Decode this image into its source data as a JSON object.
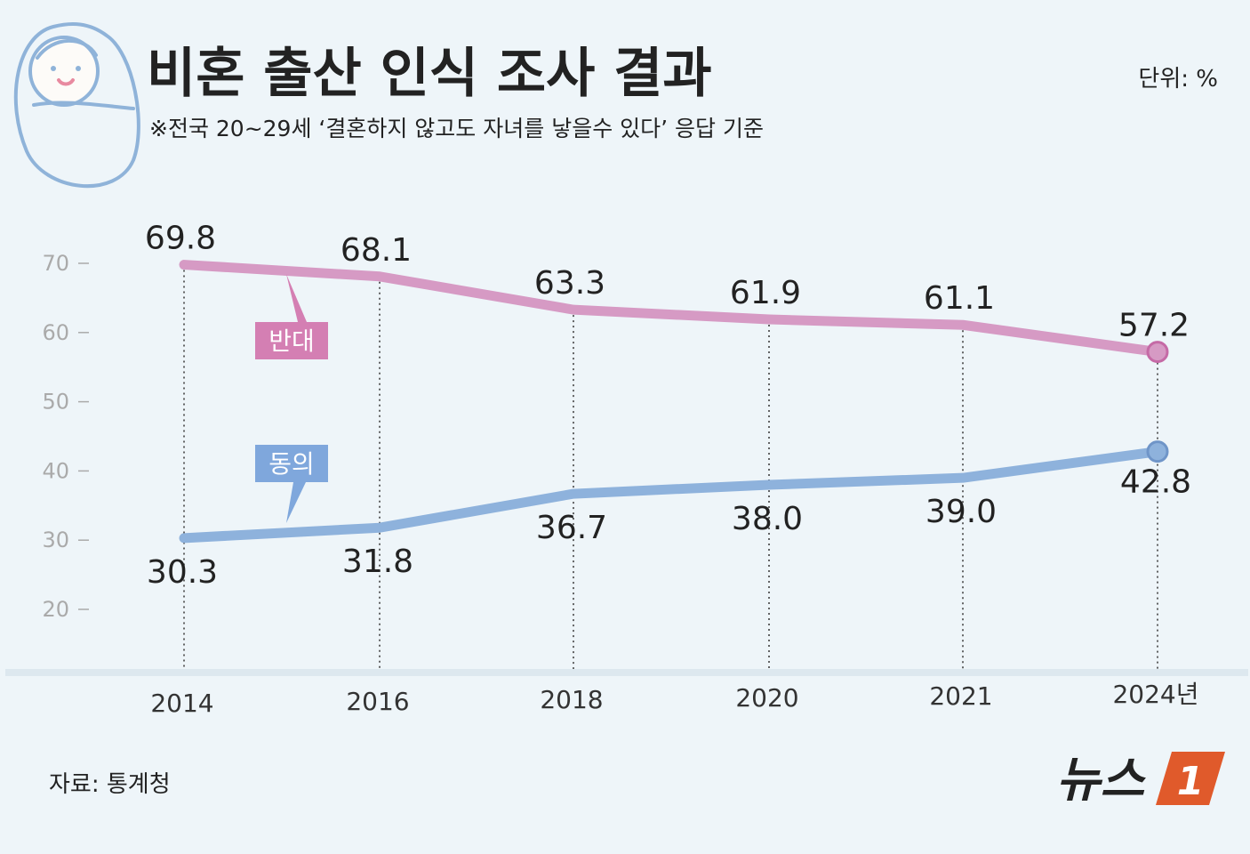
{
  "header": {
    "title": "비혼 출산 인식 조사 결과",
    "subtitle": "※전국 20~29세 ‘결혼하지 않고도 자녀를 낳을수 있다’ 응답 기준",
    "unit": "단위: %"
  },
  "footer": {
    "source": "자료: 통계청",
    "logo_text": "뉴스",
    "logo_mark": "1"
  },
  "colors": {
    "oppose": "#d69ac4",
    "oppose_label_bg": "#d47fb3",
    "agree": "#8eb2dc",
    "agree_label_bg": "#7fa7dc",
    "logo_orange": "#e05a2b",
    "background": "#eef5f9"
  },
  "icons": [
    "baby-icon"
  ],
  "chart_data": {
    "type": "line",
    "categories": [
      "2014",
      "2016",
      "2018",
      "2020",
      "2021",
      "2024년"
    ],
    "ylim": [
      20,
      70
    ],
    "yticks": [
      "70",
      "60",
      "50",
      "40",
      "30",
      "20"
    ],
    "grid": false,
    "series": [
      {
        "name": "반대",
        "values": [
          69.8,
          68.1,
          63.3,
          61.9,
          61.1,
          57.2
        ]
      },
      {
        "name": "동의",
        "values": [
          30.3,
          31.8,
          36.7,
          38.0,
          39.0,
          42.8
        ]
      }
    ],
    "value_labels": {
      "oppose": [
        "69.8",
        "68.1",
        "63.3",
        "61.9",
        "61.1",
        "57.2"
      ],
      "agree": [
        "30.3",
        "31.8",
        "36.7",
        "38.0",
        "39.0",
        "42.8"
      ]
    }
  }
}
